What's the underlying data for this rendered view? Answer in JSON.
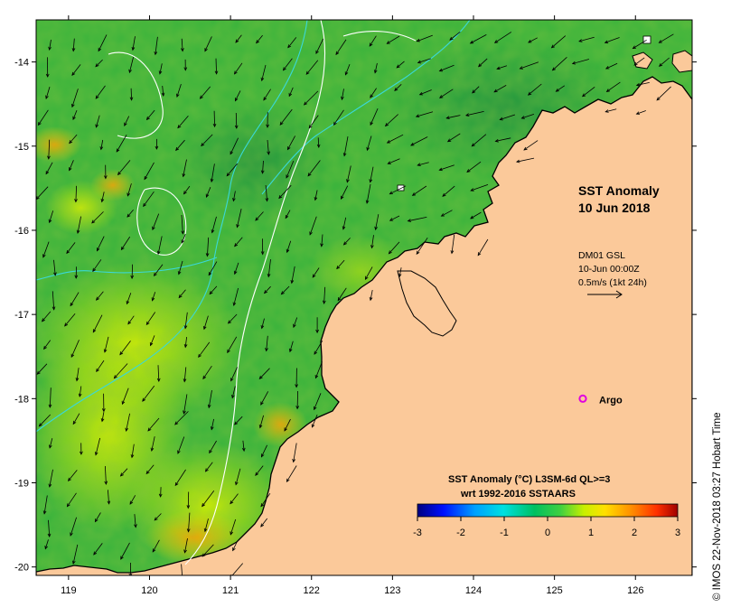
{
  "map": {
    "title_line1": "SST Anomaly",
    "title_line2": "10 Jun 2018",
    "current_source": "DM01 GSL",
    "current_time": "10-Jun 00:00Z",
    "current_scale": "0.5m/s (1kt 24h)",
    "argo_label": "Argo",
    "legend_title_line1": "SST Anomaly (°C) L3SM-6d QL>=3",
    "legend_title_line2": "wrt 1992-2016 SSTAARS",
    "credit": "© IMOS 22-Nov-2018 03:27 Hobart Time",
    "lon_ticks": [
      "119",
      "120",
      "121",
      "122",
      "123",
      "124",
      "125",
      "126"
    ],
    "lat_ticks": [
      "-14",
      "-15",
      "-16",
      "-17",
      "-18",
      "-19",
      "-20"
    ],
    "colorbar_ticks": [
      "-3",
      "-2",
      "-1",
      "0",
      "1",
      "2",
      "3"
    ],
    "lon_range": [
      118.6,
      126.7
    ],
    "lat_range": [
      -20.1,
      -13.5
    ],
    "argo_lon": 125.35,
    "argo_lat": -18.0,
    "colors": {
      "land": "#fbc99a",
      "sea_base": "#3cb43c",
      "argo": "#e000e0",
      "contour": "#ffffff",
      "isobath": "#3ad8d8"
    }
  }
}
